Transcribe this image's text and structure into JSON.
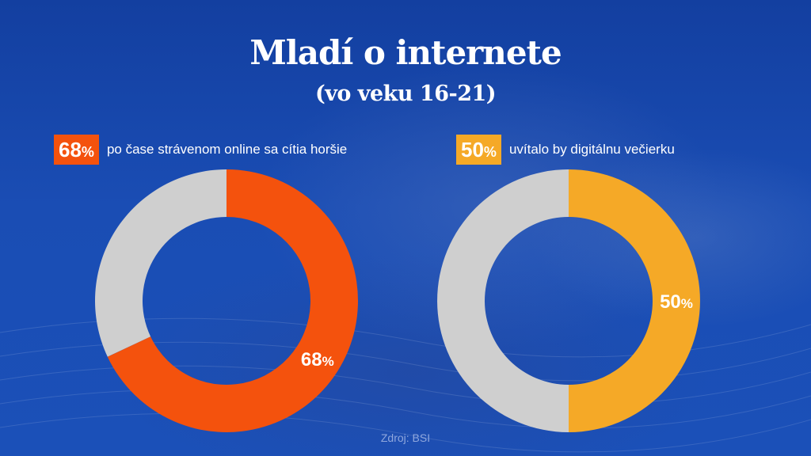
{
  "header": {
    "title": "Mladí o internete",
    "subtitle": "(vo veku 16-21)"
  },
  "source": "Zdroj: BSI",
  "colors": {
    "orange": "#f4520d",
    "yellow": "#f5a927",
    "grey": "#cfcfcf",
    "background": "#1646a8"
  },
  "chart_data": [
    {
      "type": "pie",
      "style": "donut",
      "badge": "68",
      "badge_unit": "%",
      "caption": "po čase strávenom online sa cítia horšie",
      "slices": [
        {
          "label": "68%",
          "value": 68,
          "color": "#f4520d"
        },
        {
          "label": "",
          "value": 32,
          "color": "#cfcfcf"
        }
      ]
    },
    {
      "type": "pie",
      "style": "donut",
      "badge": "50",
      "badge_unit": "%",
      "caption": "uvítalo by digitálnu večierku",
      "slices": [
        {
          "label": "50%",
          "value": 50,
          "color": "#f5a927"
        },
        {
          "label": "",
          "value": 50,
          "color": "#cfcfcf"
        }
      ]
    }
  ]
}
